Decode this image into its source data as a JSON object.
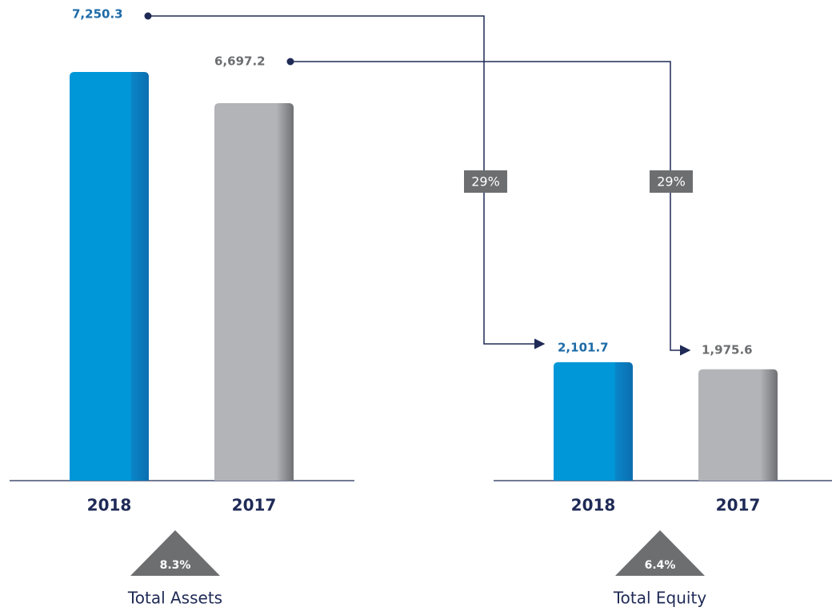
{
  "chart_data": [
    {
      "type": "bar",
      "title": "Total Assets",
      "categories": [
        "2018",
        "2017"
      ],
      "values": [
        7250.3,
        6697.2
      ],
      "value_labels": [
        "7,250.3",
        "6,697.2"
      ],
      "colors": [
        "#0097d8",
        "#b2b4b7"
      ],
      "annotation": "8.3%"
    },
    {
      "type": "bar",
      "title": "Total Equity",
      "categories": [
        "2018",
        "2017"
      ],
      "values": [
        2101.7,
        1975.6
      ],
      "value_labels": [
        "2,101.7",
        "1,975.6"
      ],
      "colors": [
        "#0097d8",
        "#b2b4b7"
      ],
      "annotation": "6.4%",
      "ratios": [
        "29%",
        "29%"
      ]
    }
  ]
}
